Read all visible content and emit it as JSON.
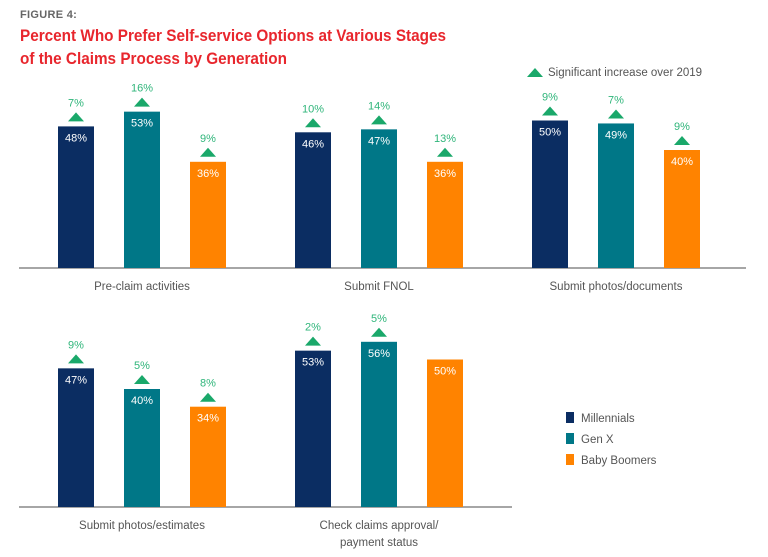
{
  "figure_label": "FIGURE 4:",
  "title_line1": "Percent Who Prefer Self-service Options at Various Stages",
  "title_line2": "of the Claims Process by Generation",
  "significance_legend": "Significant increase over 2019",
  "colors": {
    "Millennials": "#0b2d62",
    "Gen X": "#007787",
    "Baby Boomers": "#ff8300",
    "increase": "#1aa86a",
    "title": "#e8262d"
  },
  "chart_data": {
    "type": "bar",
    "ylim": [
      0,
      60
    ],
    "grid": false,
    "legend_placement": "right",
    "series_names": [
      "Millennials",
      "Gen X",
      "Baby Boomers"
    ],
    "categories": [
      "Pre-claim activities",
      "Submit FNOL",
      "Submit photos/documents",
      "Submit photos/estimates",
      "Check claims approval/ payment status"
    ],
    "category_lines": [
      [
        "Pre-claim activities"
      ],
      [
        "Submit FNOL"
      ],
      [
        "Submit photos/documents"
      ],
      [
        "Submit photos/estimates"
      ],
      [
        "Check claims approval/",
        "payment status"
      ]
    ],
    "series": [
      {
        "name": "Millennials",
        "values": [
          48,
          46,
          50,
          47,
          53
        ],
        "increase_over_2019": [
          "7%",
          "10%",
          "9%",
          "9%",
          "2%"
        ]
      },
      {
        "name": "Gen X",
        "values": [
          53,
          47,
          49,
          40,
          56
        ],
        "increase_over_2019": [
          "16%",
          "14%",
          "7%",
          "5%",
          "5%"
        ]
      },
      {
        "name": "Baby Boomers",
        "values": [
          36,
          36,
          40,
          34,
          50
        ],
        "increase_over_2019": [
          "9%",
          "13%",
          "9%",
          "8%",
          null
        ]
      }
    ]
  }
}
